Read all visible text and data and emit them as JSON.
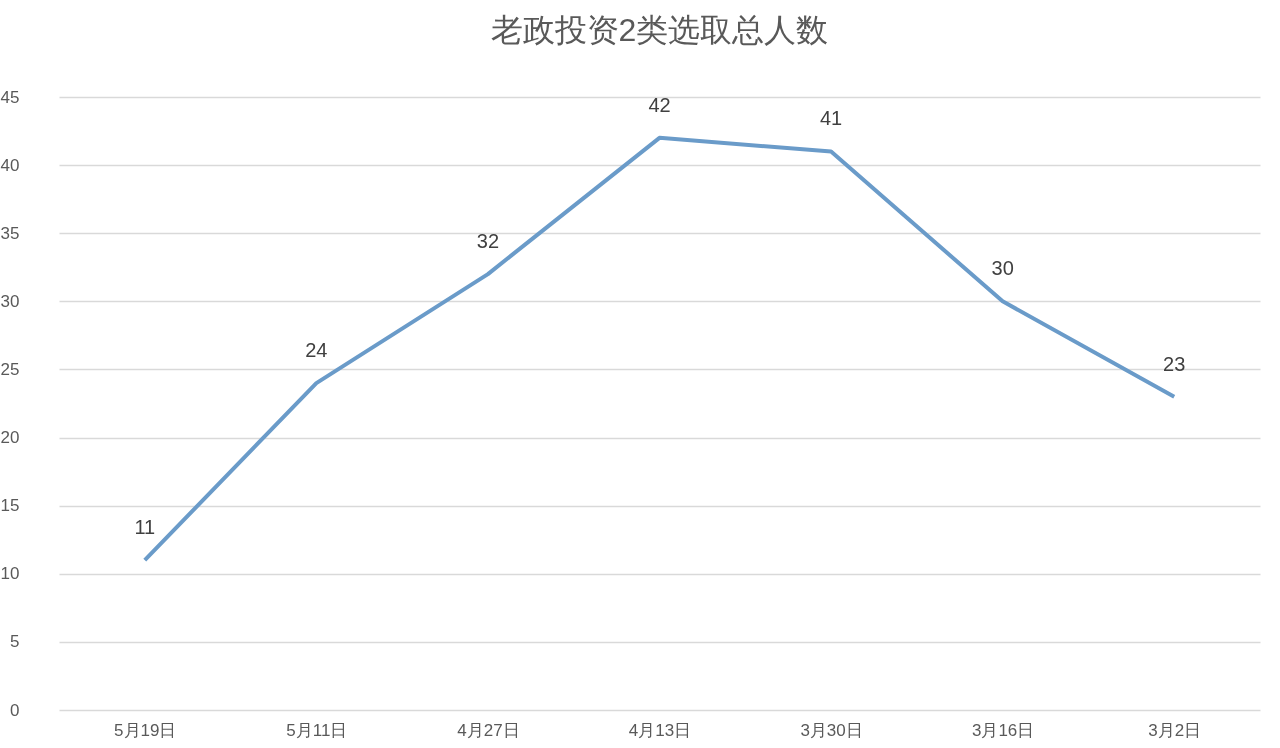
{
  "chart_data": {
    "type": "line",
    "title": "老政投资2类选取总人数",
    "categories": [
      "5月19日",
      "5月11日",
      "4月27日",
      "4月13日",
      "3月30日",
      "3月16日",
      "3月2日"
    ],
    "series": [
      {
        "color": "#6a9bc9",
        "values": [
          11,
          24,
          32,
          42,
          41,
          30,
          23
        ]
      }
    ],
    "ylim": [
      0,
      45
    ],
    "yticks": [
      0,
      5,
      10,
      15,
      20,
      25,
      30,
      35,
      40,
      45
    ],
    "grid": "y",
    "data_labels": true,
    "marker": "none",
    "line_style": "solid",
    "legend": false
  }
}
